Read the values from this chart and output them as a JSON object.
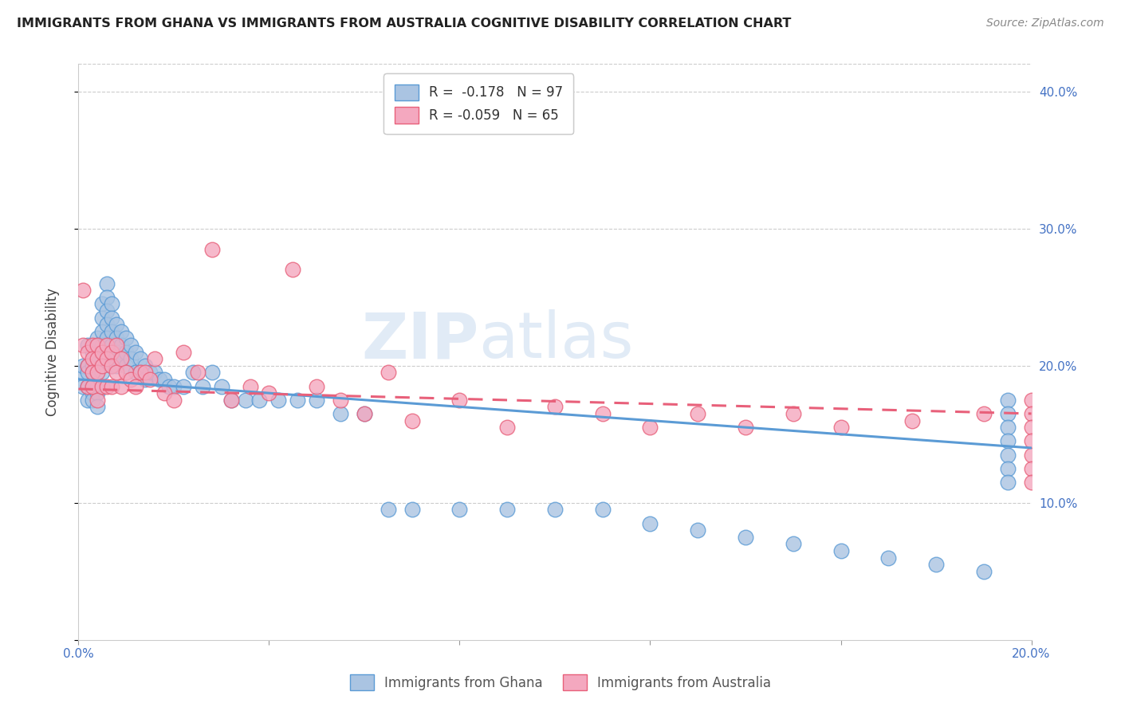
{
  "title": "IMMIGRANTS FROM GHANA VS IMMIGRANTS FROM AUSTRALIA COGNITIVE DISABILITY CORRELATION CHART",
  "source": "Source: ZipAtlas.com",
  "ylabel": "Cognitive Disability",
  "xlim": [
    0.0,
    0.2
  ],
  "ylim": [
    0.0,
    0.42
  ],
  "ghana_color": "#aac4e2",
  "australia_color": "#f4a8bf",
  "ghana_edge_color": "#5b9bd5",
  "australia_edge_color": "#e8607a",
  "ghana_R": -0.178,
  "ghana_N": 97,
  "australia_R": -0.059,
  "australia_N": 65,
  "watermark_zip": "ZIP",
  "watermark_atlas": "atlas",
  "background_color": "#ffffff",
  "grid_color": "#cccccc",
  "ghana_scatter_x": [
    0.001,
    0.001,
    0.001,
    0.002,
    0.002,
    0.002,
    0.002,
    0.002,
    0.003,
    0.003,
    0.003,
    0.003,
    0.003,
    0.003,
    0.004,
    0.004,
    0.004,
    0.004,
    0.004,
    0.004,
    0.004,
    0.005,
    0.005,
    0.005,
    0.005,
    0.005,
    0.005,
    0.005,
    0.006,
    0.006,
    0.006,
    0.006,
    0.006,
    0.006,
    0.007,
    0.007,
    0.007,
    0.007,
    0.007,
    0.008,
    0.008,
    0.008,
    0.008,
    0.009,
    0.009,
    0.009,
    0.01,
    0.01,
    0.01,
    0.011,
    0.011,
    0.012,
    0.012,
    0.013,
    0.013,
    0.014,
    0.014,
    0.015,
    0.016,
    0.017,
    0.018,
    0.019,
    0.02,
    0.022,
    0.024,
    0.026,
    0.028,
    0.03,
    0.032,
    0.035,
    0.038,
    0.042,
    0.046,
    0.05,
    0.055,
    0.06,
    0.065,
    0.07,
    0.08,
    0.09,
    0.1,
    0.11,
    0.12,
    0.13,
    0.14,
    0.15,
    0.16,
    0.17,
    0.18,
    0.19,
    0.195,
    0.195,
    0.195,
    0.195,
    0.195,
    0.195,
    0.195
  ],
  "ghana_scatter_y": [
    0.195,
    0.2,
    0.185,
    0.215,
    0.2,
    0.195,
    0.185,
    0.175,
    0.21,
    0.2,
    0.195,
    0.185,
    0.18,
    0.175,
    0.22,
    0.215,
    0.205,
    0.195,
    0.185,
    0.18,
    0.17,
    0.245,
    0.235,
    0.225,
    0.215,
    0.205,
    0.195,
    0.185,
    0.26,
    0.25,
    0.24,
    0.23,
    0.22,
    0.21,
    0.245,
    0.235,
    0.225,
    0.215,
    0.2,
    0.23,
    0.22,
    0.21,
    0.2,
    0.225,
    0.215,
    0.205,
    0.22,
    0.21,
    0.2,
    0.215,
    0.205,
    0.21,
    0.195,
    0.205,
    0.195,
    0.2,
    0.19,
    0.195,
    0.195,
    0.19,
    0.19,
    0.185,
    0.185,
    0.185,
    0.195,
    0.185,
    0.195,
    0.185,
    0.175,
    0.175,
    0.175,
    0.175,
    0.175,
    0.175,
    0.165,
    0.165,
    0.095,
    0.095,
    0.095,
    0.095,
    0.095,
    0.095,
    0.085,
    0.08,
    0.075,
    0.07,
    0.065,
    0.06,
    0.055,
    0.05,
    0.175,
    0.165,
    0.155,
    0.145,
    0.135,
    0.125,
    0.115
  ],
  "australia_scatter_x": [
    0.001,
    0.001,
    0.002,
    0.002,
    0.002,
    0.003,
    0.003,
    0.003,
    0.003,
    0.004,
    0.004,
    0.004,
    0.004,
    0.005,
    0.005,
    0.005,
    0.006,
    0.006,
    0.006,
    0.007,
    0.007,
    0.007,
    0.008,
    0.008,
    0.009,
    0.009,
    0.01,
    0.011,
    0.012,
    0.013,
    0.014,
    0.015,
    0.016,
    0.018,
    0.02,
    0.022,
    0.025,
    0.028,
    0.032,
    0.036,
    0.04,
    0.045,
    0.05,
    0.055,
    0.06,
    0.065,
    0.07,
    0.08,
    0.09,
    0.1,
    0.11,
    0.12,
    0.13,
    0.14,
    0.15,
    0.16,
    0.175,
    0.19,
    0.2,
    0.2,
    0.2,
    0.2,
    0.2,
    0.2,
    0.2
  ],
  "australia_scatter_y": [
    0.255,
    0.215,
    0.21,
    0.2,
    0.185,
    0.215,
    0.205,
    0.195,
    0.185,
    0.215,
    0.205,
    0.195,
    0.175,
    0.21,
    0.2,
    0.185,
    0.215,
    0.205,
    0.185,
    0.21,
    0.2,
    0.185,
    0.215,
    0.195,
    0.205,
    0.185,
    0.195,
    0.19,
    0.185,
    0.195,
    0.195,
    0.19,
    0.205,
    0.18,
    0.175,
    0.21,
    0.195,
    0.285,
    0.175,
    0.185,
    0.18,
    0.27,
    0.185,
    0.175,
    0.165,
    0.195,
    0.16,
    0.175,
    0.155,
    0.17,
    0.165,
    0.155,
    0.165,
    0.155,
    0.165,
    0.155,
    0.16,
    0.165,
    0.175,
    0.165,
    0.155,
    0.145,
    0.135,
    0.125,
    0.115
  ]
}
